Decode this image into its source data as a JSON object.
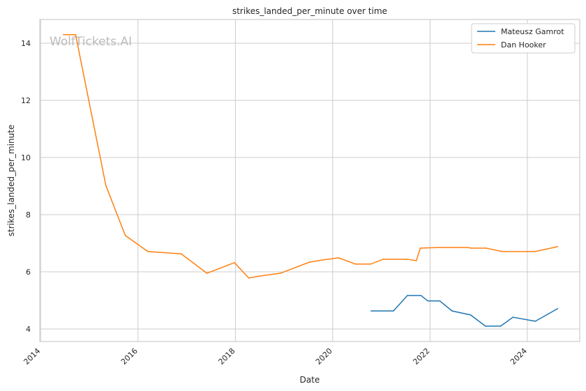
{
  "chart_data": {
    "type": "line",
    "title": "strikes_landed_per_minute over time",
    "xlabel": "Date",
    "ylabel": "strikes_landed_per_minute",
    "xlim": [
      "2013-12-25",
      "2025-01-28"
    ],
    "ylim": [
      3.56,
      14.83
    ],
    "x_ticks": [
      "2014",
      "2016",
      "2018",
      "2020",
      "2022",
      "2024"
    ],
    "y_ticks": [
      4,
      6,
      8,
      10,
      12,
      14
    ],
    "grid": true,
    "legend_position": "top-right",
    "watermark": "WolfTickets.AI",
    "series": [
      {
        "name": "Mateusz Gamrot",
        "color": "#1f77b4",
        "x": [
          "2020-10-15",
          "2021-04-01",
          "2021-07-15",
          "2021-10-25",
          "2021-12-15",
          "2022-03-15",
          "2022-06-15",
          "2022-11-01",
          "2023-02-20",
          "2023-06-15",
          "2023-09-15",
          "2024-03-01",
          "2024-08-15"
        ],
        "y": [
          4.63,
          4.63,
          5.17,
          5.17,
          4.98,
          4.98,
          4.63,
          4.49,
          4.1,
          4.1,
          4.41,
          4.27,
          4.71
        ]
      },
      {
        "name": "Dan Hooker",
        "color": "#ff7f0e",
        "x": [
          "2014-06-20",
          "2014-09-20",
          "2015-05-05",
          "2015-09-28",
          "2016-03-15",
          "2016-11-20",
          "2017-06-01",
          "2017-12-25",
          "2018-04-12",
          "2018-07-01",
          "2018-12-05",
          "2019-07-12",
          "2019-10-15",
          "2020-02-15",
          "2020-06-20",
          "2020-10-12",
          "2021-01-15",
          "2021-07-15",
          "2021-09-20",
          "2021-10-20",
          "2022-03-10",
          "2022-10-12",
          "2022-11-05",
          "2023-02-25",
          "2023-06-25",
          "2024-03-01",
          "2024-08-15"
        ],
        "y": [
          14.3,
          14.3,
          9.02,
          7.27,
          6.71,
          6.63,
          5.95,
          6.32,
          5.78,
          5.85,
          5.95,
          6.34,
          6.41,
          6.49,
          6.27,
          6.27,
          6.44,
          6.44,
          6.39,
          6.83,
          6.85,
          6.85,
          6.83,
          6.83,
          6.71,
          6.71,
          6.88
        ]
      }
    ]
  }
}
